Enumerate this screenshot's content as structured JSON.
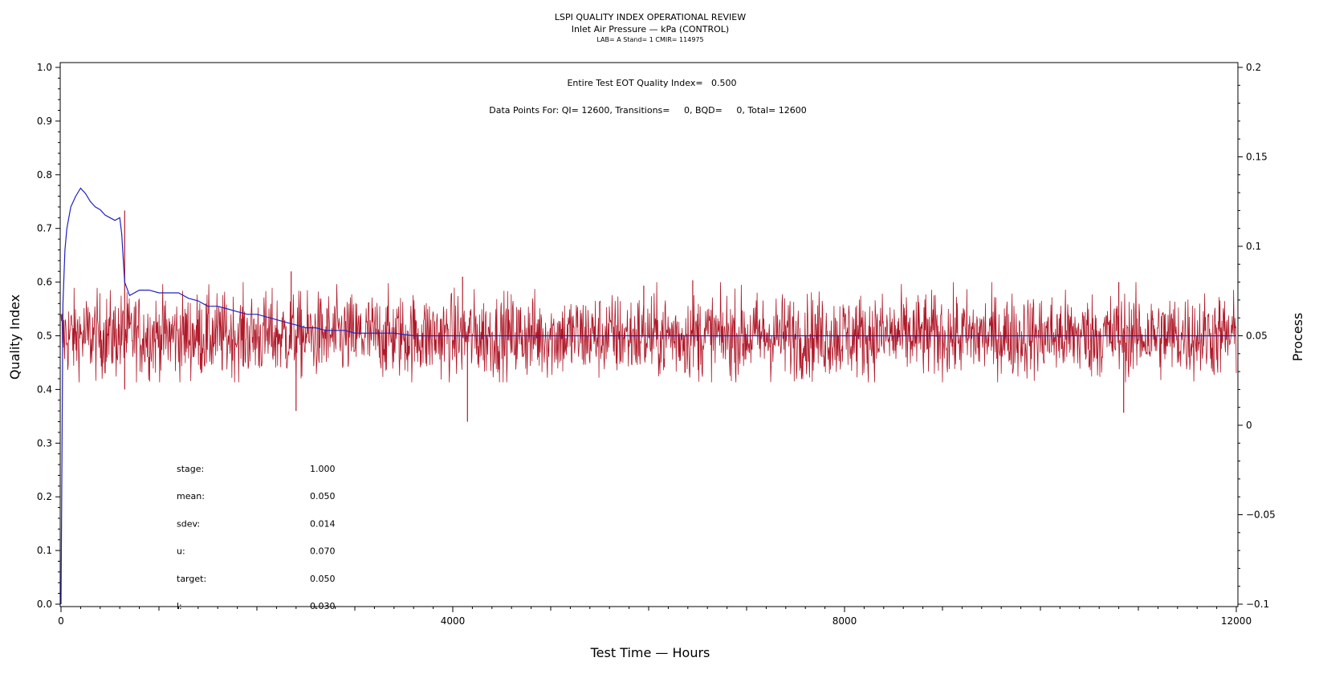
{
  "chart_data": {
    "type": "line",
    "title": "LSPI QUALITY INDEX OPERATIONAL REVIEW",
    "subtitle": "Inlet Air Pressure — kPa (CONTROL)",
    "subtitle2": "LAB= A Stand= 1 CMIR= 114975",
    "xlabel": "Test Time — Hours",
    "ylabel_left": "Quality Index",
    "ylabel_right": "Process",
    "xlim": [
      0,
      12000
    ],
    "ylim_left": [
      0,
      1
    ],
    "ylim_right": [
      -0.1,
      0.2
    ],
    "x_ticks": [
      {
        "value": 0,
        "label": "0"
      },
      {
        "value": 4000,
        "label": "4000"
      },
      {
        "value": 8000,
        "label": "8000"
      },
      {
        "value": 12000,
        "label": "12000"
      }
    ],
    "y_left_ticks": [
      {
        "value": 0.0,
        "label": "0.0"
      },
      {
        "value": 0.1,
        "label": "0.1"
      },
      {
        "value": 0.2,
        "label": "0.2"
      },
      {
        "value": 0.3,
        "label": "0.3"
      },
      {
        "value": 0.4,
        "label": "0.4"
      },
      {
        "value": 0.5,
        "label": "0.5"
      },
      {
        "value": 0.6,
        "label": "0.6"
      },
      {
        "value": 0.7,
        "label": "0.7"
      },
      {
        "value": 0.8,
        "label": "0.8"
      },
      {
        "value": 0.9,
        "label": "0.9"
      },
      {
        "value": 1.0,
        "label": "1.0"
      }
    ],
    "y_right_ticks": [
      {
        "value": -0.1,
        "label": "−0.1"
      },
      {
        "value": -0.05,
        "label": "−0.05"
      },
      {
        "value": 0,
        "label": "0"
      },
      {
        "value": 0.05,
        "label": "0.05"
      },
      {
        "value": 0.1,
        "label": "0.1"
      },
      {
        "value": 0.15,
        "label": "0.15"
      },
      {
        "value": 0.2,
        "label": "0.2"
      }
    ],
    "annotations": {
      "quality_index_line": "Entire Test EOT Quality Index=   0.500",
      "data_points_line": "Data Points For: QI= 12600, Transitions=     0, BQD=     0, Total= 12600"
    },
    "stats": [
      {
        "label": "stage:",
        "value": "1.000"
      },
      {
        "label": "mean:",
        "value": "0.050"
      },
      {
        "label": "sdev:",
        "value": "0.014"
      },
      {
        "label": "u:",
        "value": "0.070"
      },
      {
        "label": "target:",
        "value": "0.050"
      },
      {
        "label": "l:",
        "value": "0.030"
      }
    ],
    "series": [
      {
        "axis": "left",
        "color": "#2020c0",
        "x": [
          0,
          20,
          40,
          60,
          100,
          150,
          200,
          250,
          300,
          350,
          400,
          450,
          500,
          550,
          600,
          620,
          650,
          700,
          800,
          900,
          1000,
          1100,
          1200,
          1300,
          1400,
          1500,
          1600,
          1700,
          1800,
          1900,
          2000,
          2100,
          2200,
          2300,
          2400,
          2500,
          2600,
          2700,
          2800,
          2900,
          3000,
          3200,
          3400,
          3600,
          3800,
          4000,
          4500,
          5000,
          6000,
          7000,
          8000,
          9000,
          10000,
          11000,
          12000
        ],
        "y": [
          0.0,
          0.56,
          0.66,
          0.7,
          0.74,
          0.76,
          0.775,
          0.765,
          0.75,
          0.74,
          0.735,
          0.725,
          0.72,
          0.715,
          0.72,
          0.69,
          0.6,
          0.575,
          0.585,
          0.585,
          0.58,
          0.58,
          0.58,
          0.57,
          0.565,
          0.555,
          0.555,
          0.55,
          0.545,
          0.54,
          0.54,
          0.535,
          0.53,
          0.525,
          0.52,
          0.515,
          0.515,
          0.51,
          0.51,
          0.51,
          0.505,
          0.505,
          0.505,
          0.5,
          0.5,
          0.5,
          0.5,
          0.5,
          0.5,
          0.5,
          0.5,
          0.5,
          0.5,
          0.5,
          0.5
        ]
      },
      {
        "axis": "right",
        "color": "#b01828",
        "mean": 0.05,
        "sdev": 0.014,
        "n_points": 12600,
        "x_range": [
          0,
          12000
        ],
        "y_range_observed": [
          0.0,
          0.12
        ],
        "notable_spikes": [
          {
            "x": 650,
            "y": 0.12
          },
          {
            "x": 650,
            "y": 0.02
          },
          {
            "x": 2350,
            "y": 0.086
          },
          {
            "x": 2400,
            "y": 0.008
          },
          {
            "x": 4100,
            "y": 0.083
          },
          {
            "x": 4150,
            "y": 0.002
          },
          {
            "x": 5950,
            "y": 0.078
          },
          {
            "x": 6450,
            "y": 0.081
          },
          {
            "x": 10800,
            "y": 0.08
          },
          {
            "x": 10850,
            "y": 0.007
          }
        ]
      }
    ]
  }
}
